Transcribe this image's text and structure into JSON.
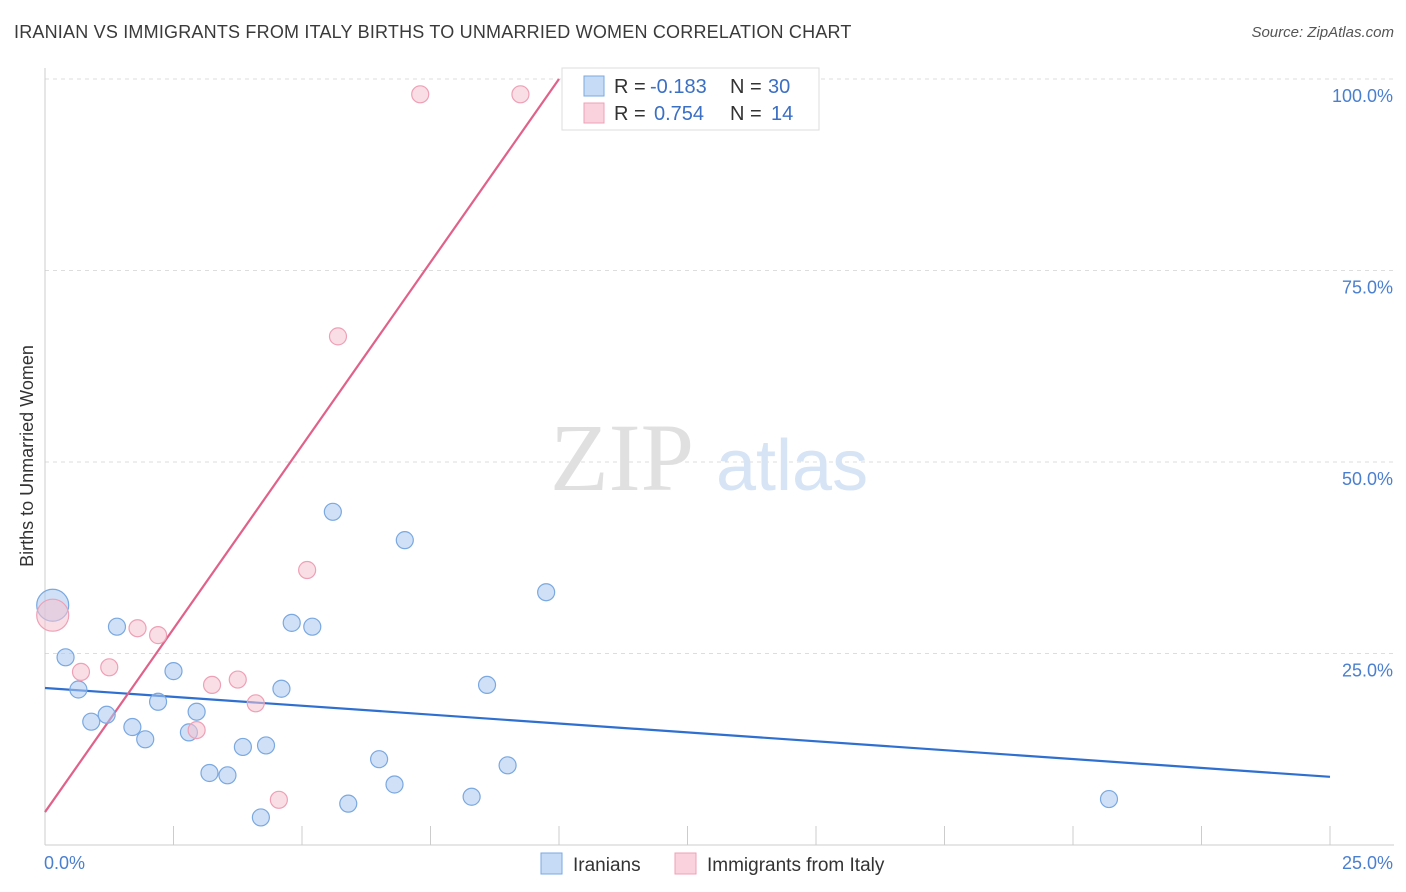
{
  "title": "IRANIAN VS IMMIGRANTS FROM ITALY BIRTHS TO UNMARRIED WOMEN CORRELATION CHART",
  "source": "Source: ZipAtlas.com",
  "watermark": {
    "zip": "ZIP",
    "atlas": "atlas"
  },
  "chart_data": {
    "type": "scatter",
    "title": "IRANIAN VS IMMIGRANTS FROM ITALY BIRTHS TO UNMARRIED WOMEN CORRELATION CHART",
    "xlabel": "",
    "ylabel": "Births to Unmarried Women",
    "xlim": [
      0,
      25
    ],
    "ylim": [
      0,
      100
    ],
    "x_tick_labels": [
      "0.0%",
      "25.0%"
    ],
    "y_ticks": [
      25,
      50,
      75,
      100
    ],
    "y_tick_labels": [
      "25.0%",
      "50.0%",
      "75.0%",
      "100.0%"
    ],
    "grid": true,
    "legend_position": "top-center",
    "series": [
      {
        "name": "Iranians",
        "color": "#a9c8f0",
        "stroke": "#7aa8e0",
        "line_color": "#2f6fd0",
        "R": "-0.183",
        "N": "30",
        "trend": {
          "x0": 0,
          "y0": 20.5,
          "x1": 25,
          "y1": 8.9
        },
        "points": [
          {
            "x": 0.15,
            "y": 31.3,
            "big": true
          },
          {
            "x": 0.4,
            "y": 24.5
          },
          {
            "x": 0.65,
            "y": 20.3
          },
          {
            "x": 0.9,
            "y": 16.1
          },
          {
            "x": 1.2,
            "y": 17.0
          },
          {
            "x": 1.4,
            "y": 28.5
          },
          {
            "x": 1.7,
            "y": 15.4
          },
          {
            "x": 1.95,
            "y": 13.8
          },
          {
            "x": 2.2,
            "y": 18.7
          },
          {
            "x": 2.5,
            "y": 22.7
          },
          {
            "x": 2.8,
            "y": 14.7
          },
          {
            "x": 2.95,
            "y": 17.4
          },
          {
            "x": 3.2,
            "y": 9.4
          },
          {
            "x": 3.55,
            "y": 9.1
          },
          {
            "x": 3.85,
            "y": 12.8
          },
          {
            "x": 4.2,
            "y": 3.6
          },
          {
            "x": 4.3,
            "y": 13.0
          },
          {
            "x": 4.6,
            "y": 20.4
          },
          {
            "x": 4.8,
            "y": 29.0
          },
          {
            "x": 5.2,
            "y": 28.5
          },
          {
            "x": 5.6,
            "y": 43.5
          },
          {
            "x": 5.9,
            "y": 5.4
          },
          {
            "x": 6.5,
            "y": 11.2
          },
          {
            "x": 6.8,
            "y": 7.9
          },
          {
            "x": 7.0,
            "y": 39.8
          },
          {
            "x": 8.3,
            "y": 6.3
          },
          {
            "x": 8.6,
            "y": 20.9
          },
          {
            "x": 9.0,
            "y": 10.4
          },
          {
            "x": 9.75,
            "y": 33.0
          },
          {
            "x": 20.7,
            "y": 6.0
          }
        ]
      },
      {
        "name": "Immigrants from Italy",
        "color": "#f6c2d0",
        "stroke": "#eea0b6",
        "line_color": "#e0628a",
        "R": "0.754",
        "N": "14",
        "trend": {
          "x0": 0,
          "y0": 4.3,
          "x1": 10.0,
          "y1": 100.0
        },
        "points": [
          {
            "x": 0.15,
            "y": 30.0,
            "big": true
          },
          {
            "x": 0.7,
            "y": 22.6
          },
          {
            "x": 1.25,
            "y": 23.2
          },
          {
            "x": 1.8,
            "y": 28.3
          },
          {
            "x": 2.2,
            "y": 27.4
          },
          {
            "x": 2.95,
            "y": 15.0
          },
          {
            "x": 3.25,
            "y": 20.9
          },
          {
            "x": 3.75,
            "y": 21.6
          },
          {
            "x": 4.1,
            "y": 18.5
          },
          {
            "x": 4.55,
            "y": 5.9
          },
          {
            "x": 5.1,
            "y": 35.9
          },
          {
            "x": 5.7,
            "y": 66.4
          },
          {
            "x": 7.3,
            "y": 98.0
          },
          {
            "x": 9.25,
            "y": 98.0
          }
        ]
      }
    ]
  }
}
